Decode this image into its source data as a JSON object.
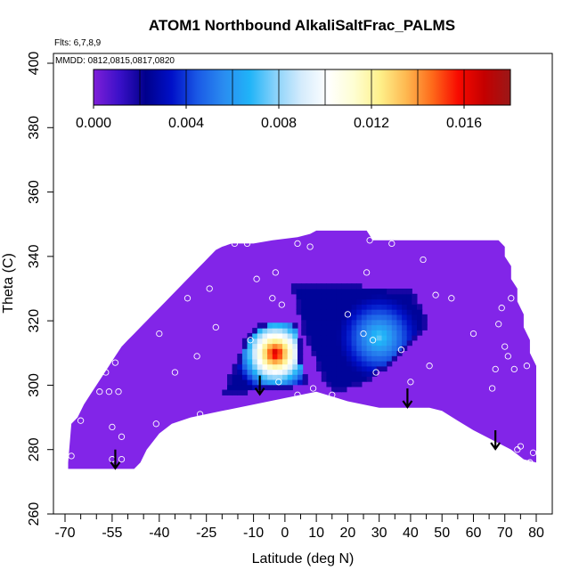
{
  "chart_data": {
    "type": "heatmap",
    "title": "ATOM1 Northbound AlkaliSaltFrac_PALMS",
    "subtitle": "Flts: 6,7,8,9",
    "annotation": "MMDD: 0812,0815,0817,0820",
    "xlabel": "Latitude (deg N)",
    "ylabel": "Theta (C)",
    "xlim": [
      -70,
      80
    ],
    "ylim": [
      260,
      400
    ],
    "xticks_major": [
      -70,
      -55,
      -40,
      -25,
      -10,
      0,
      10,
      20,
      30,
      40,
      50,
      60,
      70,
      80
    ],
    "xticks_minor": [
      -65,
      -60,
      -50,
      -45,
      -35,
      -30,
      -20,
      -15,
      -5,
      5,
      15,
      25,
      35,
      45,
      55,
      65,
      75
    ],
    "yticks": [
      260,
      280,
      300,
      320,
      340,
      360,
      380,
      400
    ],
    "grid": false,
    "colorbar": {
      "range": [
        0,
        0.018
      ],
      "tick_values": [
        0,
        0.004,
        0.008,
        0.012,
        0.016
      ],
      "tick_labels": [
        "0.000",
        "0.004",
        "0.008",
        "0.012",
        "0.016"
      ],
      "colors": [
        "#7f1fd8",
        "#3a10c8",
        "#00008c",
        "#0010c8",
        "#1a5ae6",
        "#2a8cf0",
        "#20b4f8",
        "#8ad2fa",
        "#d6ecfc",
        "#ffffff",
        "#fefed2",
        "#fef08a",
        "#feb850",
        "#fe6a1a",
        "#f80a00",
        "#c40000",
        "#9a1818"
      ]
    },
    "domain_background": "#8225e8",
    "domain_top": [
      [
        -69,
        276
      ],
      [
        -68,
        288
      ],
      [
        -66,
        290
      ],
      [
        -64,
        294
      ],
      [
        -62,
        297
      ],
      [
        -60,
        300
      ],
      [
        -58,
        303
      ],
      [
        -56,
        306
      ],
      [
        -54,
        309
      ],
      [
        -52,
        312
      ],
      [
        -50,
        314
      ],
      [
        -48,
        316
      ],
      [
        -46,
        318
      ],
      [
        -44,
        320
      ],
      [
        -42,
        322
      ],
      [
        -40,
        324
      ],
      [
        -38,
        326
      ],
      [
        -36,
        328
      ],
      [
        -34,
        330
      ],
      [
        -32,
        332
      ],
      [
        -30,
        334
      ],
      [
        -28,
        336
      ],
      [
        -26,
        338
      ],
      [
        -24,
        340
      ],
      [
        -22,
        342
      ],
      [
        -20,
        343
      ],
      [
        -17,
        344
      ],
      [
        -14,
        344
      ],
      [
        -10,
        344
      ],
      [
        -4,
        345
      ],
      [
        4,
        346
      ],
      [
        8,
        347
      ],
      [
        10,
        348
      ],
      [
        26,
        348
      ],
      [
        28,
        345
      ],
      [
        68,
        345
      ],
      [
        70,
        343
      ],
      [
        70,
        340
      ],
      [
        72,
        337
      ],
      [
        72,
        333
      ],
      [
        74,
        330
      ],
      [
        74,
        326
      ],
      [
        76,
        322
      ],
      [
        76,
        318
      ],
      [
        78,
        314
      ],
      [
        78,
        310
      ],
      [
        80,
        306
      ],
      [
        80,
        276
      ]
    ],
    "domain_bottom": [
      [
        80,
        276
      ],
      [
        76,
        277
      ],
      [
        72,
        280
      ],
      [
        66,
        283
      ],
      [
        60,
        286
      ],
      [
        55,
        289
      ],
      [
        50,
        292
      ],
      [
        46,
        293
      ],
      [
        30,
        293
      ],
      [
        20,
        295
      ],
      [
        10,
        298
      ],
      [
        0,
        296
      ],
      [
        -10,
        294
      ],
      [
        -20,
        292
      ],
      [
        -30,
        290
      ],
      [
        -36,
        288
      ],
      [
        -40,
        285
      ],
      [
        -44,
        280
      ],
      [
        -46,
        276
      ],
      [
        -48,
        274
      ],
      [
        -69,
        274
      ],
      [
        -69,
        272
      ]
    ],
    "blobs": [
      {
        "name": "left-triangle",
        "outline": [
          [
            -20,
            297
          ],
          [
            -12,
            316
          ],
          [
            -6,
            320
          ],
          [
            4,
            320
          ],
          [
            7,
            300
          ],
          [
            -18,
            297
          ]
        ],
        "peak": [
          -3,
          310
        ],
        "peak_value": 0.017,
        "radius": 6
      },
      {
        "name": "right-triangle",
        "outline": [
          [
            2,
            332
          ],
          [
            40,
            330
          ],
          [
            46,
            320
          ],
          [
            42,
            314
          ],
          [
            28,
            302
          ],
          [
            24,
            300
          ],
          [
            16,
            298
          ],
          [
            12,
            302
          ],
          [
            6,
            316
          ]
        ],
        "peak": [
          30,
          315
        ],
        "peak_value": 0.0075,
        "radius": 6
      }
    ],
    "sample_points": [
      [
        -68,
        278
      ],
      [
        -65,
        289
      ],
      [
        -59,
        298
      ],
      [
        -57,
        304
      ],
      [
        -54,
        307
      ],
      [
        -55,
        287
      ],
      [
        -52,
        284
      ],
      [
        -55,
        277
      ],
      [
        -52,
        277
      ],
      [
        -56,
        298
      ],
      [
        -53,
        298
      ],
      [
        -41,
        288
      ],
      [
        -40,
        316
      ],
      [
        -35,
        304
      ],
      [
        -31,
        327
      ],
      [
        -28,
        309
      ],
      [
        -27,
        291
      ],
      [
        -24,
        330
      ],
      [
        -22,
        318
      ],
      [
        -16,
        344
      ],
      [
        -12,
        344
      ],
      [
        -9,
        333
      ],
      [
        -4,
        327
      ],
      [
        -3,
        335
      ],
      [
        -1,
        325
      ],
      [
        4,
        344
      ],
      [
        8,
        343
      ],
      [
        -11,
        314
      ],
      [
        -2,
        301
      ],
      [
        4,
        297
      ],
      [
        9,
        299
      ],
      [
        15,
        297
      ],
      [
        20,
        322
      ],
      [
        25,
        316
      ],
      [
        26,
        335
      ],
      [
        27,
        345
      ],
      [
        28,
        314
      ],
      [
        29,
        304
      ],
      [
        34,
        344
      ],
      [
        37,
        311
      ],
      [
        40,
        301
      ],
      [
        44,
        339
      ],
      [
        46,
        306
      ],
      [
        48,
        328
      ],
      [
        53,
        327
      ],
      [
        60,
        316
      ],
      [
        66,
        299
      ],
      [
        67,
        305
      ],
      [
        68,
        319
      ],
      [
        69,
        324
      ],
      [
        70,
        312
      ],
      [
        71,
        309
      ],
      [
        72,
        327
      ],
      [
        73,
        305
      ],
      [
        74,
        280
      ],
      [
        75,
        281
      ],
      [
        77,
        306
      ],
      [
        78,
        276
      ],
      [
        79,
        279
      ]
    ],
    "arrows": [
      [
        -54,
        280
      ],
      [
        -8,
        303
      ],
      [
        39,
        299
      ],
      [
        67,
        286
      ]
    ]
  }
}
